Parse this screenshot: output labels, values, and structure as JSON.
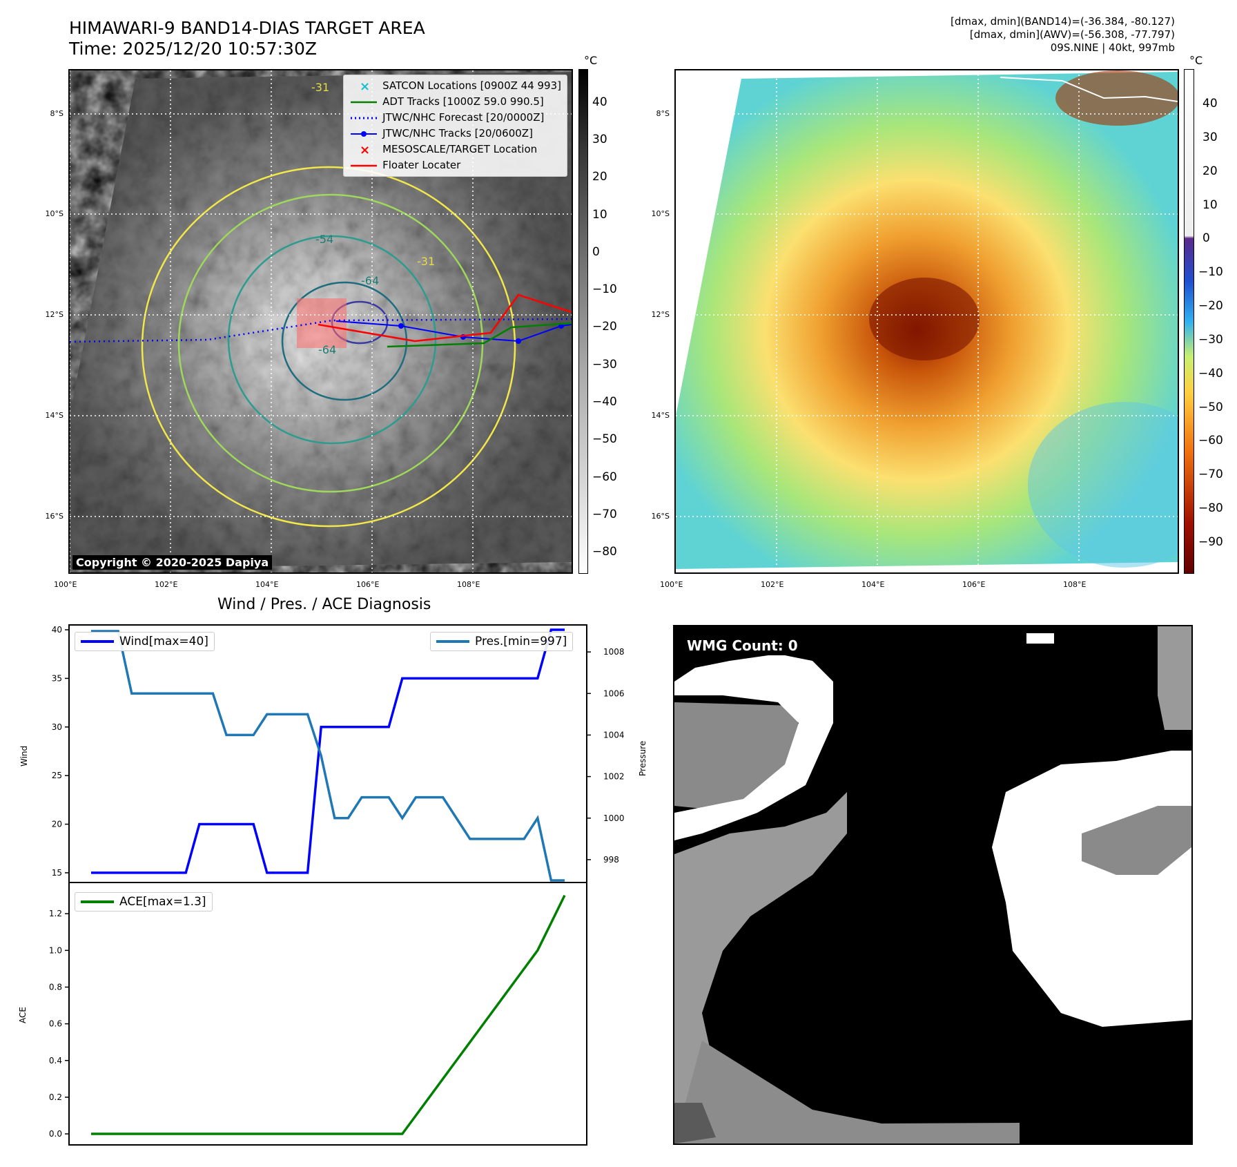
{
  "header": {
    "title_line1": "HIMAWARI-9 BAND14-DIAS TARGET AREA",
    "title_line2": "Time: 2025/12/20 10:57:30Z",
    "info_line1": "[dmax, dmin](BAND14)=(-36.384, -80.127)",
    "info_line2": "[dmax, dmin](AWV)=(-56.308, -77.797)",
    "info_line3": "09S.NINE | 40kt, 997mb"
  },
  "map_axes": {
    "lat_ticks": [
      "8°S",
      "10°S",
      "12°S",
      "14°S",
      "16°S"
    ],
    "lon_ticks": [
      "100°E",
      "102°E",
      "104°E",
      "106°E",
      "108°E"
    ]
  },
  "ir_panel": {
    "copyright": "Copyright © 2020-2025 Dapiya",
    "contour_labels": [
      "-31",
      "-54",
      "-64",
      "-64",
      "-31"
    ],
    "colorbar_unit": "°C",
    "colorbar_ticks": [
      "40",
      "30",
      "20",
      "10",
      "0",
      "−10",
      "−20",
      "−30",
      "−40",
      "−50",
      "−60",
      "−70",
      "−80"
    ],
    "legend": [
      {
        "label": "SATCON Locations [0900Z 44 993]",
        "icon": "cross-icon",
        "color": "#17becf"
      },
      {
        "label": "ADT Tracks [1000Z 59.0 990.5]",
        "icon": "line-icon",
        "color": "#008000"
      },
      {
        "label": "JTWC/NHC Forecast [20/0000Z]",
        "icon": "dotted-line-icon",
        "color": "#0000ff"
      },
      {
        "label": "JTWC/NHC Tracks [20/0600Z]",
        "icon": "dot-line-icon",
        "color": "#0000ff"
      },
      {
        "label": "MESOSCALE/TARGET Location",
        "icon": "cross-icon",
        "color": "#ff0000"
      },
      {
        "label": "Floater Locater",
        "icon": "line-icon",
        "color": "#ff0000"
      }
    ]
  },
  "color_panel": {
    "colorbar_unit": "°C",
    "colorbar_ticks": [
      "40",
      "30",
      "20",
      "10",
      "0",
      "−10",
      "−20",
      "−30",
      "−40",
      "−50",
      "−60",
      "−70",
      "−80",
      "−90"
    ]
  },
  "diagnosis": {
    "title": "Wind / Pres. / ACE Diagnosis",
    "wind_legend": "Wind[max=40]",
    "pres_legend": "Pres.[min=997]",
    "ace_legend": "ACE[max=1.3]",
    "wind_ylabel": "Wind",
    "pres_ylabel": "Pressure",
    "ace_ylabel": "ACE"
  },
  "wmg_panel": {
    "count_label": "WMG Count: 0"
  },
  "chart_data": [
    {
      "type": "line",
      "title": "Wind / Pres. / ACE Diagnosis",
      "x": [
        0,
        1,
        2,
        3,
        4,
        5,
        6,
        7,
        8,
        9,
        10,
        11,
        12,
        13,
        14,
        15,
        16,
        17,
        18,
        19,
        20,
        21,
        22,
        23,
        24,
        25,
        26,
        27,
        28,
        29,
        30,
        31,
        32,
        33,
        34,
        35
      ],
      "series": [
        {
          "name": "Wind[max=40]",
          "color": "#0000ff",
          "axis": "left",
          "values": [
            15,
            15,
            15,
            15,
            15,
            15,
            15,
            15,
            20,
            20,
            20,
            20,
            20,
            15,
            15,
            15,
            15,
            30,
            30,
            30,
            30,
            30,
            30,
            35,
            35,
            35,
            35,
            35,
            35,
            35,
            35,
            35,
            35,
            35,
            40,
            40
          ]
        },
        {
          "name": "Pres.[min=997]",
          "color": "#1f77b4",
          "axis": "right",
          "values": [
            1009,
            1009,
            1009,
            1006,
            1006,
            1006,
            1006,
            1006,
            1006,
            1006,
            1004,
            1004,
            1004,
            1005,
            1005,
            1005,
            1005,
            1003,
            1000,
            1000,
            1001,
            1001,
            1001,
            1000,
            1001,
            1001,
            1001,
            1000,
            999,
            999,
            999,
            999,
            999,
            1000,
            997,
            997
          ]
        }
      ],
      "ylim_left": [
        14.0,
        40.5
      ],
      "yticks_left": [
        15,
        20,
        25,
        30,
        35,
        40
      ],
      "ylim_right": [
        996.9,
        1009.3
      ],
      "yticks_right": [
        998,
        1000,
        1002,
        1004,
        1006,
        1008
      ],
      "ylabel_left": "Wind",
      "ylabel_right": "Pressure"
    },
    {
      "type": "line",
      "x": [
        0,
        1,
        2,
        3,
        4,
        5,
        6,
        7,
        8,
        9,
        10,
        11,
        12,
        13,
        14,
        15,
        16,
        17,
        18,
        19,
        20,
        21,
        22,
        23,
        24,
        25,
        26,
        27,
        28,
        29,
        30,
        31,
        32,
        33,
        34,
        35
      ],
      "series": [
        {
          "name": "ACE[max=1.3]",
          "color": "#008000",
          "values": [
            0,
            0,
            0,
            0,
            0,
            0,
            0,
            0,
            0,
            0,
            0,
            0,
            0,
            0,
            0,
            0,
            0,
            0,
            0,
            0,
            0,
            0,
            0,
            0,
            0.1,
            0.2,
            0.3,
            0.4,
            0.5,
            0.6,
            0.7,
            0.8,
            0.9,
            1.0,
            1.15,
            1.3
          ]
        }
      ],
      "ylim": [
        -0.06,
        1.37
      ],
      "yticks": [
        0.0,
        0.2,
        0.4,
        0.6,
        0.8,
        1.0,
        1.2
      ],
      "ylabel": "ACE"
    }
  ]
}
